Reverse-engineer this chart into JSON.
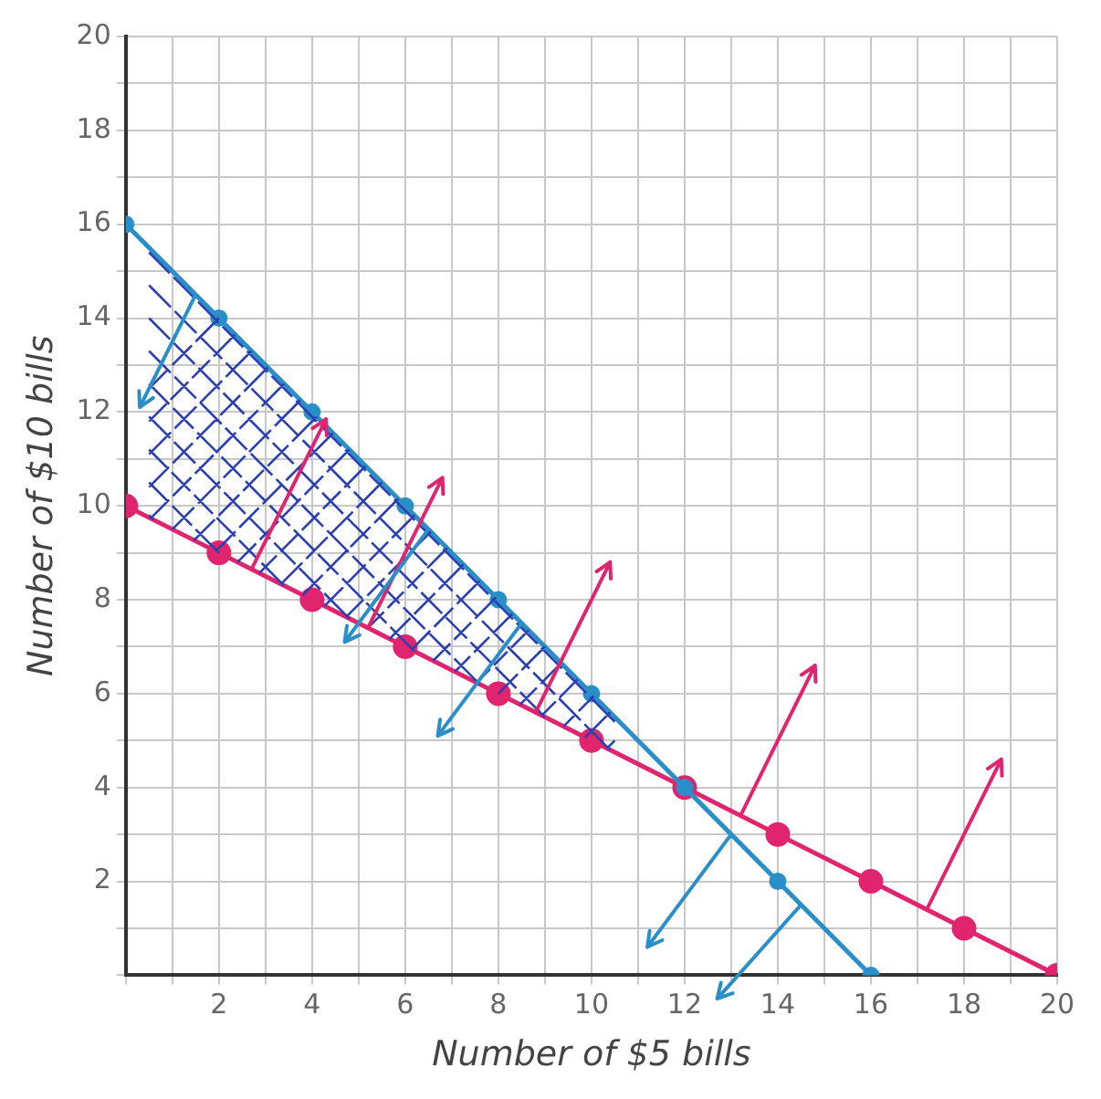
{
  "chart_data": {
    "type": "line",
    "xlabel": "Number of $5 bills",
    "ylabel": "Number of $10 bills",
    "series": [
      {
        "color": "#2a8fc8",
        "x": [
          0,
          2,
          4,
          6,
          8,
          10,
          12,
          14,
          16
        ],
        "values": [
          16,
          14,
          12,
          10,
          8,
          6,
          4,
          2,
          0
        ]
      },
      {
        "color": "#e0246e",
        "x": [
          0,
          2,
          4,
          6,
          8,
          10,
          12,
          14,
          16,
          18,
          20
        ],
        "values": [
          10,
          9,
          8,
          7,
          6,
          5,
          4,
          3,
          2,
          1,
          0
        ]
      }
    ],
    "xlim": [
      0,
      20
    ],
    "ylim": [
      0,
      20
    ],
    "xticks": [
      {
        "value": 0,
        "label": null
      },
      {
        "value": 1,
        "label": null
      },
      2,
      {
        "value": 3,
        "label": null
      },
      4,
      {
        "value": 5,
        "label": null
      },
      6,
      {
        "value": 7,
        "label": null
      },
      8,
      {
        "value": 9,
        "label": null
      },
      10,
      {
        "value": 11,
        "label": null
      },
      12,
      {
        "value": 13,
        "label": null
      },
      14,
      {
        "value": 15,
        "label": null
      },
      16,
      {
        "value": 17,
        "label": null
      },
      18,
      {
        "value": 19,
        "label": null
      },
      20
    ],
    "yticks": [
      {
        "value": 0,
        "label": null
      },
      {
        "value": 1,
        "label": null
      },
      2,
      {
        "value": 3,
        "label": null
      },
      4,
      {
        "value": 5,
        "label": null
      },
      6,
      {
        "value": 7,
        "label": null
      },
      8,
      {
        "value": 9,
        "label": null
      },
      10,
      {
        "value": 11,
        "label": null
      },
      12,
      {
        "value": 13,
        "label": null
      },
      14,
      {
        "value": 15,
        "label": null
      },
      16,
      {
        "value": 17,
        "label": null
      },
      18,
      {
        "value": 19,
        "label": null
      },
      20
    ],
    "grid": true,
    "legend": false,
    "marker": "circle",
    "line_style": "solid"
  }
}
